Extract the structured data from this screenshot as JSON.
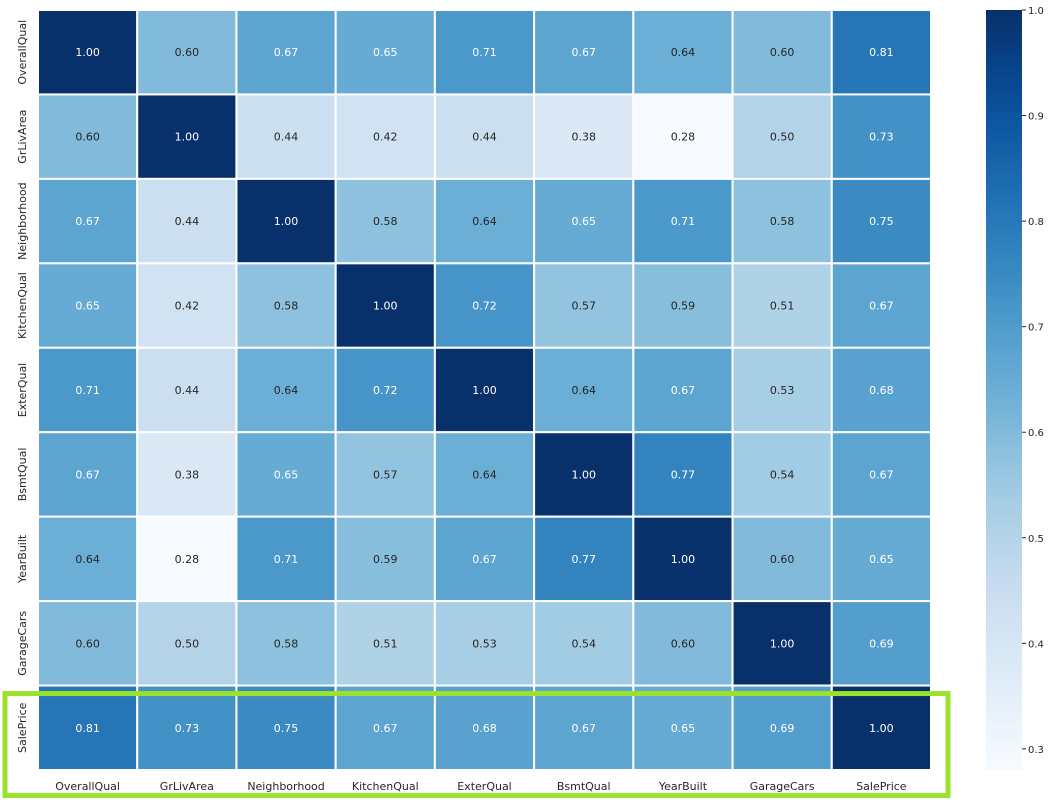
{
  "chart_data": {
    "type": "heatmap",
    "title": "",
    "xlabel": "",
    "ylabel": "",
    "rows": [
      "OverallQual",
      "GrLivArea",
      "Neighborhood",
      "KitchenQual",
      "ExterQual",
      "BsmtQual",
      "YearBuilt",
      "GarageCars",
      "SalePrice"
    ],
    "cols": [
      "OverallQual",
      "GrLivArea",
      "Neighborhood",
      "KitchenQual",
      "ExterQual",
      "BsmtQual",
      "YearBuilt",
      "GarageCars",
      "SalePrice"
    ],
    "values": [
      [
        1.0,
        0.6,
        0.67,
        0.65,
        0.71,
        0.67,
        0.64,
        0.6,
        0.81
      ],
      [
        0.6,
        1.0,
        0.44,
        0.42,
        0.44,
        0.38,
        0.28,
        0.5,
        0.73
      ],
      [
        0.67,
        0.44,
        1.0,
        0.58,
        0.64,
        0.65,
        0.71,
        0.58,
        0.75
      ],
      [
        0.65,
        0.42,
        0.58,
        1.0,
        0.72,
        0.57,
        0.59,
        0.51,
        0.67
      ],
      [
        0.71,
        0.44,
        0.64,
        0.72,
        1.0,
        0.64,
        0.67,
        0.53,
        0.68
      ],
      [
        0.67,
        0.38,
        0.65,
        0.57,
        0.64,
        1.0,
        0.77,
        0.54,
        0.67
      ],
      [
        0.64,
        0.28,
        0.71,
        0.59,
        0.67,
        0.77,
        1.0,
        0.6,
        0.65
      ],
      [
        0.6,
        0.5,
        0.58,
        0.51,
        0.53,
        0.54,
        0.6,
        1.0,
        0.69
      ],
      [
        0.81,
        0.73,
        0.75,
        0.67,
        0.68,
        0.67,
        0.65,
        0.69,
        1.0
      ]
    ],
    "annotation_format": "0.00",
    "colormap": "Blues",
    "vmin": 0.28,
    "vmax": 1.0,
    "colorbar_ticks": [
      "0.3",
      "0.4",
      "0.5",
      "0.6",
      "0.7",
      "0.8",
      "0.9",
      "1.0"
    ],
    "highlight": {
      "row": "SalePrice",
      "color": "#9be22d"
    },
    "gridline_color": "#ffffff"
  }
}
